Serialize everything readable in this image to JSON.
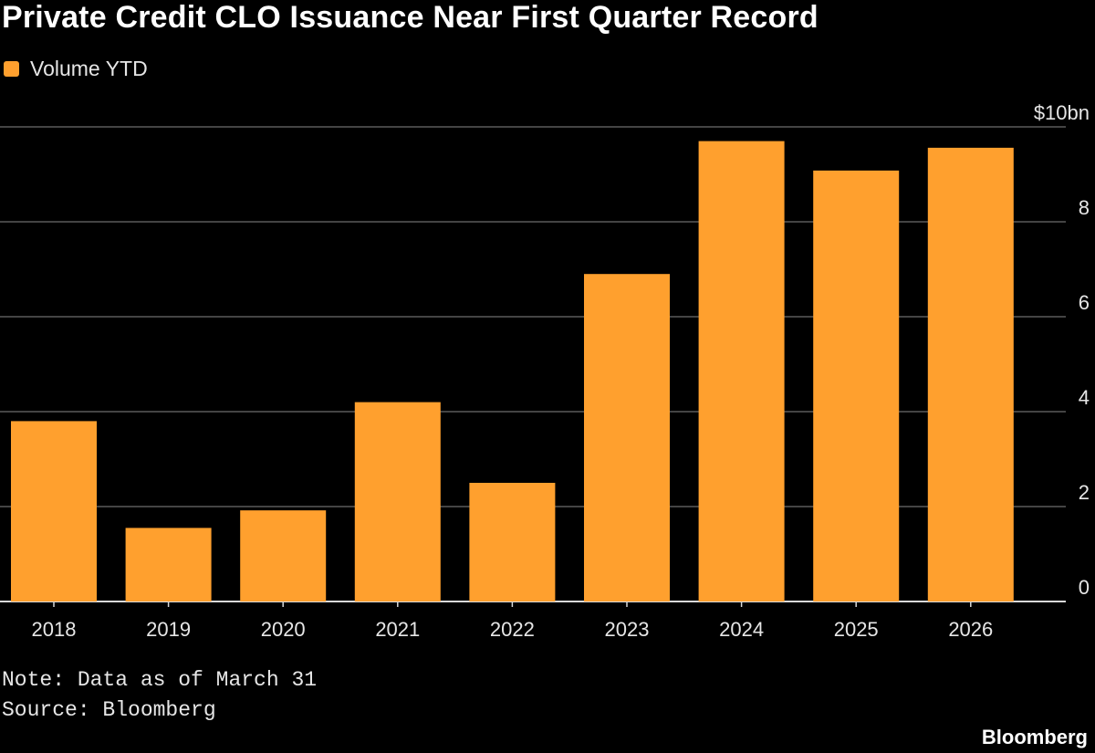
{
  "title": "Private Credit CLO Issuance Near First Quarter Record",
  "legend": {
    "label": "Volume YTD",
    "color": "#FFA02E"
  },
  "note": "Note: Data as of March 31",
  "source": "Source: Bloomberg",
  "brand": "Bloomberg",
  "chart_data": {
    "type": "bar",
    "title": "Private Credit CLO Issuance Near First Quarter Record",
    "xlabel": "",
    "ylabel": "",
    "categories": [
      "2018",
      "2019",
      "2020",
      "2021",
      "2022",
      "2023",
      "2024",
      "2025",
      "2026"
    ],
    "series": [
      {
        "name": "Volume YTD",
        "values": [
          3.8,
          1.55,
          1.92,
          4.2,
          2.5,
          6.9,
          9.7,
          9.08,
          9.56
        ]
      }
    ],
    "ylim": [
      0,
      10
    ],
    "yticks": [
      0,
      2,
      4,
      6,
      8,
      10
    ],
    "ytick_labels": [
      "0",
      "2",
      "4",
      "6",
      "8",
      "$10bn"
    ],
    "grid": true,
    "legend_position": "top-left"
  }
}
